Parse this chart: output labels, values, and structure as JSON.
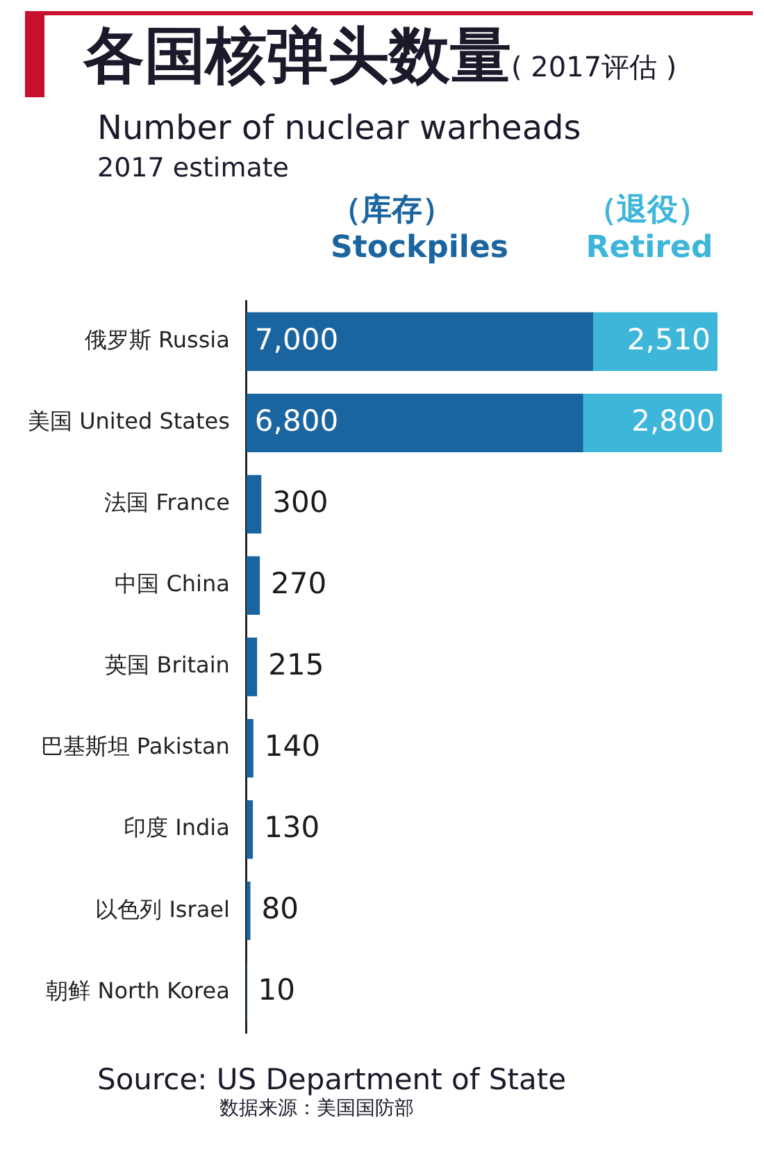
{
  "chart_data": {
    "type": "bar",
    "orientation": "horizontal",
    "stacked": true,
    "title": "各国核弹头数量",
    "subtitle": "Number of nuclear warheads",
    "annotations": [
      "( 2017评估 )",
      "2017 estimate",
      "Source: US Department of State",
      "数据来源：美国国防部"
    ],
    "categories": [
      "俄罗斯 Russia",
      "美国 United States",
      "法国 France",
      "中国 China",
      "英国 Britain",
      "巴基斯坦 Pakistan",
      "印度 India",
      "以色列 Israel",
      "朝鲜 North Korea"
    ],
    "series": [
      {
        "name": "（库存） Stockpiles",
        "color": "#1a65a0",
        "values": [
          7000,
          6800,
          300,
          270,
          215,
          140,
          130,
          80,
          10
        ],
        "value_labels": [
          "7,000",
          "6,800",
          "300",
          "270",
          "215",
          "140",
          "130",
          "80",
          "10"
        ]
      },
      {
        "name": "（退役） Retired",
        "color": "#3db6da",
        "values": [
          2510,
          2800,
          null,
          null,
          null,
          null,
          null,
          null,
          null
        ],
        "value_labels": [
          "2,510",
          "2,800",
          null,
          null,
          null,
          null,
          null,
          null,
          null
        ]
      }
    ],
    "legend": "top",
    "grid": false
  }
}
